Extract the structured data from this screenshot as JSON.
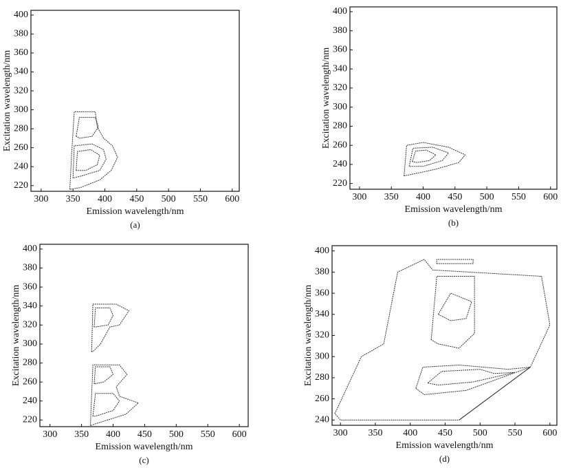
{
  "chart_data": [
    {
      "type": "contour",
      "caption": "(a)",
      "x_label": "Emission wavelength/nm",
      "y_label": "Excitation wavelength/nm",
      "xlim": [
        284,
        611
      ],
      "ylim": [
        214,
        405
      ],
      "xticks": [
        300,
        350,
        400,
        450,
        500,
        550,
        600
      ],
      "yticks": [
        220,
        240,
        260,
        280,
        300,
        320,
        340,
        360,
        380,
        400
      ],
      "color": "#333333",
      "contours": [
        {
          "x": [
            345,
            348,
            352,
            385,
            388,
            398,
            412,
            420,
            410,
            392,
            362,
            345
          ],
          "y": [
            216,
            255,
            298,
            298,
            282,
            270,
            262,
            250,
            236,
            226,
            218,
            216
          ]
        },
        {
          "x": [
            350,
            352,
            380,
            398,
            402,
            392,
            362,
            350
          ],
          "y": [
            228,
            262,
            264,
            258,
            248,
            236,
            230,
            228
          ]
        },
        {
          "x": [
            355,
            357,
            378,
            392,
            388,
            370,
            355
          ],
          "y": [
            236,
            256,
            258,
            252,
            242,
            236,
            236
          ]
        },
        {
          "x": [
            355,
            360,
            385,
            390,
            380,
            360,
            355
          ],
          "y": [
            272,
            292,
            292,
            282,
            272,
            270,
            272
          ]
        }
      ]
    },
    {
      "type": "contour",
      "caption": "(b)",
      "x_label": "Emission wavelength/nm",
      "y_label": "Excitation wavelength/nm",
      "xlim": [
        285,
        610
      ],
      "ylim": [
        214,
        405
      ],
      "xticks": [
        300,
        350,
        400,
        450,
        500,
        550,
        600
      ],
      "yticks": [
        220,
        240,
        260,
        280,
        300,
        320,
        340,
        360,
        380,
        400
      ],
      "color": "#333333",
      "contours": [
        {
          "x": [
            370,
            374,
            400,
            440,
            466,
            456,
            420,
            385,
            370
          ],
          "y": [
            228,
            260,
            263,
            258,
            250,
            242,
            235,
            230,
            228
          ]
        },
        {
          "x": [
            378,
            384,
            415,
            440,
            430,
            400,
            378
          ],
          "y": [
            238,
            257,
            258,
            252,
            244,
            238,
            238
          ]
        },
        {
          "x": [
            383,
            388,
            405,
            420,
            410,
            390,
            383
          ],
          "y": [
            243,
            254,
            255,
            250,
            244,
            242,
            243
          ]
        }
      ]
    },
    {
      "type": "contour",
      "caption": "(c)",
      "x_label": "Emission wavelength/nm",
      "y_label": "Excitation wavelength/nm",
      "xlim": [
        284,
        614
      ],
      "ylim": [
        213,
        405
      ],
      "xticks": [
        300,
        350,
        400,
        450,
        500,
        550,
        600
      ],
      "yticks": [
        220,
        240,
        260,
        280,
        300,
        320,
        340,
        360,
        380,
        400
      ],
      "color": "#333333",
      "contours": [
        {
          "x": [
            366,
            368,
            405,
            425,
            410,
            395,
            380,
            368,
            366
          ],
          "y": [
            292,
            342,
            342,
            335,
            320,
            318,
            300,
            292,
            292
          ]
        },
        {
          "x": [
            370,
            372,
            395,
            400,
            392,
            372,
            370
          ],
          "y": [
            318,
            338,
            338,
            330,
            320,
            318,
            318
          ]
        },
        {
          "x": [
            364,
            368,
            410,
            422,
            405,
            410,
            440,
            420,
            372,
            364
          ],
          "y": [
            214,
            278,
            278,
            268,
            255,
            245,
            238,
            226,
            216,
            214
          ]
        },
        {
          "x": [
            368,
            372,
            400,
            410,
            400,
            372,
            368
          ],
          "y": [
            224,
            248,
            248,
            240,
            230,
            224,
            224
          ]
        },
        {
          "x": [
            370,
            372,
            395,
            400,
            385,
            370
          ],
          "y": [
            258,
            276,
            276,
            268,
            260,
            258
          ]
        }
      ]
    },
    {
      "type": "contour",
      "caption": "(d)",
      "x_label": "Emission wavelength/nm",
      "y_label": "Excitation wavelength/nm",
      "xlim": [
        288,
        610
      ],
      "ylim": [
        235,
        405
      ],
      "xticks": [
        300,
        350,
        400,
        450,
        500,
        550,
        600
      ],
      "yticks": [
        240,
        260,
        280,
        300,
        320,
        340,
        360,
        380,
        400
      ],
      "color": "#333333",
      "contours": [
        {
          "x": [
            292,
            330,
            362,
            382,
            420,
            432,
            588,
            600,
            572,
            470,
            300,
            292
          ],
          "y": [
            246,
            300,
            312,
            380,
            392,
            382,
            376,
            330,
            290,
            240,
            240,
            246
          ]
        },
        {
          "x": [
            408,
            418,
            470,
            540,
            572,
            480,
            420,
            408
          ],
          "y": [
            270,
            290,
            292,
            288,
            290,
            268,
            264,
            270
          ]
        },
        {
          "x": [
            425,
            445,
            500,
            520,
            550,
            490,
            440,
            425
          ],
          "y": [
            275,
            286,
            288,
            284,
            285,
            276,
            273,
            275
          ]
        },
        {
          "x": [
            430,
            438,
            492,
            492,
            470,
            440,
            430
          ],
          "y": [
            316,
            376,
            376,
            322,
            308,
            312,
            316
          ]
        },
        {
          "x": [
            440,
            458,
            488,
            480,
            458,
            440
          ],
          "y": [
            340,
            360,
            352,
            336,
            334,
            340
          ]
        },
        {
          "x": [
            438,
            490,
            490,
            438
          ],
          "y": [
            388,
            388,
            392,
            392
          ]
        },
        {
          "x": [
            470,
            572
          ],
          "y": [
            240,
            290
          ]
        }
      ]
    }
  ]
}
